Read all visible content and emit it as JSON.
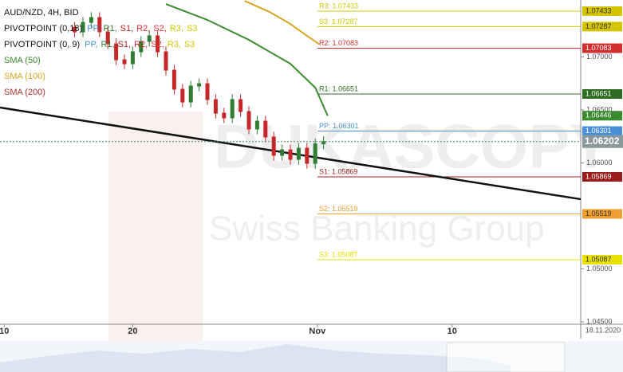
{
  "chart_data": {
    "type": "candlestick",
    "title": "AUD/NZD, 4H, BID",
    "legend": [
      {
        "name": "PIVOTPOINT (0,18)",
        "parts": [
          "PP,",
          "R1,",
          "S1,",
          "R2,",
          "S2,",
          "R3,",
          "S3"
        ],
        "colors": [
          "#4a90d9",
          "#2e7d32",
          "#b71c1c",
          "#d32f2f",
          "#e53935",
          "#d4c400",
          "#d4c400"
        ]
      },
      {
        "name": "PIVOTPOINT (0, 9)",
        "parts": [
          "PP,",
          "R1,",
          "S1,",
          "R2,",
          "S2,",
          "R3,",
          "S3"
        ],
        "colors": [
          "#4a90d9",
          "#2e7d32",
          "#b71c1c",
          "#d32f2f",
          "#e53935",
          "#d4c400",
          "#d4c400"
        ]
      }
    ],
    "watermark": [
      "DUKASCOPY",
      "Swiss Banking Group"
    ],
    "date_label": "18.11.2020",
    "xlim": [
      0,
      140
    ],
    "ylim": [
      1.04478,
      1.07538
    ],
    "xticks": [
      {
        "value": 1,
        "label": "10"
      },
      {
        "value": 32,
        "label": "20"
      },
      {
        "value": 76.5,
        "label": "Nov"
      },
      {
        "value": 109,
        "label": "10"
      }
    ],
    "yticks": [
      {
        "value": 1.045,
        "label": "1.04500"
      },
      {
        "value": 1.05,
        "label": "1.05000"
      },
      {
        "value": 1.06,
        "label": "1.06000"
      },
      {
        "value": 1.065,
        "label": "1.06500"
      },
      {
        "value": 1.07,
        "label": "1.07000"
      }
    ],
    "candles": {
      "up_color": "#2e7d32",
      "down_color": "#c62828",
      "x": [
        18,
        20,
        22,
        24,
        26,
        28,
        30,
        32,
        34,
        36,
        38,
        40,
        42,
        44,
        46,
        48,
        50,
        52,
        54,
        56,
        58,
        60,
        62,
        64,
        66,
        68,
        70,
        72,
        74,
        76,
        78
      ],
      "open": [
        1.0728,
        1.07237,
        1.07327,
        1.07373,
        1.07237,
        1.07124,
        1.06974,
        1.06936,
        1.07049,
        1.07147,
        1.072,
        1.07049,
        1.06876,
        1.06696,
        1.06575,
        1.06726,
        1.06748,
        1.06598,
        1.0647,
        1.06425,
        1.06598,
        1.06485,
        1.0632,
        1.06395,
        1.06245,
        1.06072,
        1.06124,
        1.06034,
        1.06139,
        1.05996,
        1.0618
      ],
      "high": [
        1.0733,
        1.07377,
        1.07423,
        1.07423,
        1.07287,
        1.07174,
        1.07024,
        1.07099,
        1.07197,
        1.0725,
        1.0725,
        1.07099,
        1.06926,
        1.06746,
        1.06776,
        1.06798,
        1.06798,
        1.06648,
        1.0652,
        1.06648,
        1.06648,
        1.06535,
        1.06445,
        1.06445,
        1.06295,
        1.06174,
        1.06174,
        1.06189,
        1.06189,
        1.0623,
        1.06252
      ],
      "low": [
        1.07187,
        1.07187,
        1.07277,
        1.07187,
        1.07074,
        1.06924,
        1.06886,
        1.06886,
        1.06999,
        1.07097,
        1.06999,
        1.06826,
        1.06646,
        1.06525,
        1.06525,
        1.06676,
        1.06548,
        1.0642,
        1.06375,
        1.06375,
        1.06435,
        1.0627,
        1.0627,
        1.06195,
        1.06022,
        1.06022,
        1.05984,
        1.05984,
        1.05946,
        1.05946,
        1.0613
      ],
      "close": [
        1.07237,
        1.07327,
        1.07373,
        1.07237,
        1.07124,
        1.06974,
        1.06936,
        1.07049,
        1.07147,
        1.072,
        1.07049,
        1.06876,
        1.06696,
        1.06575,
        1.06726,
        1.06748,
        1.06598,
        1.0647,
        1.06425,
        1.06598,
        1.06485,
        1.0632,
        1.06395,
        1.06245,
        1.06072,
        1.06124,
        1.06034,
        1.06139,
        1.05996,
        1.0618,
        1.06202
      ]
    },
    "sma": [
      {
        "name": "SMA (50)",
        "color": "#3a8a2e",
        "x": [
          40,
          50,
          60,
          70,
          76,
          79
        ],
        "values": [
          1.075,
          1.0735,
          1.07162,
          1.06936,
          1.06711,
          1.06446
        ],
        "tag": 1.06446
      },
      {
        "name": "SMA (100)",
        "color": "#d9a520",
        "x": [
          59,
          65,
          70,
          74,
          77
        ],
        "values": [
          1.0753,
          1.07425,
          1.07312,
          1.072,
          1.0712
        ]
      },
      {
        "name": "SMA (200)",
        "color": "#b03030"
      }
    ],
    "trendline": {
      "color": "#111111",
      "x": [
        0,
        140
      ],
      "values": [
        1.06523,
        1.05658
      ]
    },
    "last_price": 1.06202,
    "pivots": [
      {
        "label": "R3: 1.07433",
        "value": 1.07433,
        "color": "#d4c400",
        "tag_text": "#333333"
      },
      {
        "label": "S3: 1.07287",
        "value": 1.07287,
        "color": "#d4c400",
        "tag_text": "#333333"
      },
      {
        "label": "R2: 1.07083",
        "value": 1.07083,
        "color": "#d32f2f",
        "tag_text": "#ffffff"
      },
      {
        "label": "R1: 1.06651",
        "value": 1.06651,
        "color": "#2e6b20",
        "tag_text": "#ffffff"
      },
      {
        "label": "PP: 1.06301",
        "value": 1.06301,
        "color": "#4a90d9",
        "tag_text": "#ffffff"
      },
      {
        "label": "S1: 1.05869",
        "value": 1.05869,
        "color": "#9b1c1c",
        "tag_text": "#ffffff"
      },
      {
        "label": "S2: 1.05519",
        "value": 1.05519,
        "color": "#f0a030",
        "tag_text": "#333333"
      },
      {
        "label": "S3: 1.05087",
        "value": 1.05087,
        "color": "#e8e000",
        "tag_text": "#333333"
      }
    ]
  }
}
